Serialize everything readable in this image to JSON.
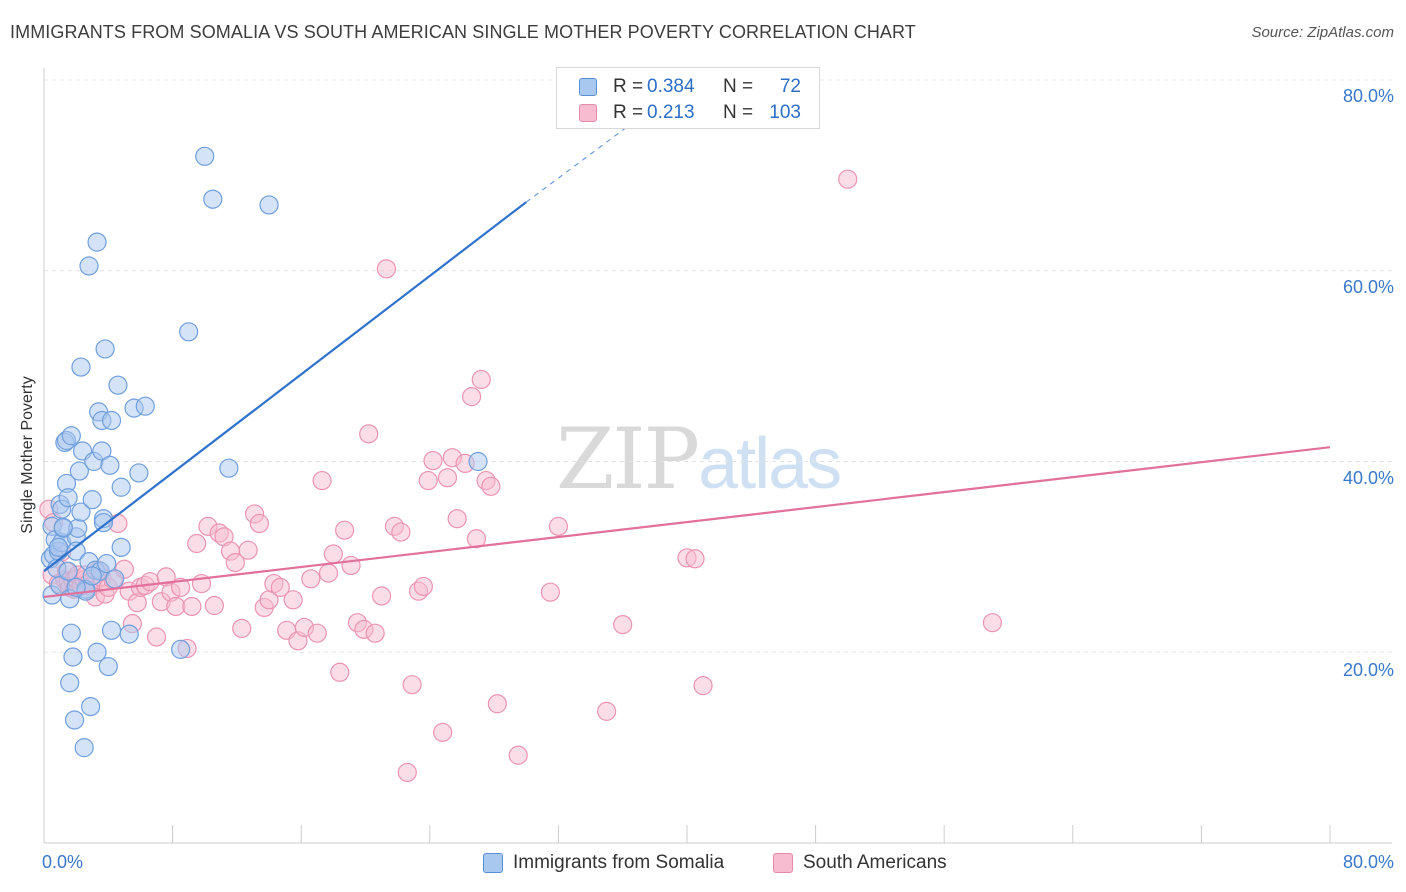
{
  "header": {
    "title": "IMMIGRANTS FROM SOMALIA VS SOUTH AMERICAN SINGLE MOTHER POVERTY CORRELATION CHART",
    "source": "Source: ZipAtlas.com"
  },
  "watermark": {
    "zip": "ZIP",
    "atlas": "atlas"
  },
  "legend_top": [
    {
      "r_label": "R =",
      "r_value": "0.384",
      "n_label": "N =",
      "n_value": "72",
      "color": "#a9c8f0",
      "border": "#5b8fd4"
    },
    {
      "r_label": "R =",
      "r_value": "0.213",
      "n_label": "N =",
      "n_value": "103",
      "color": "#f7bcd0",
      "border": "#e68aa8"
    }
  ],
  "axis": {
    "ylabel": "Single Mother Poverty",
    "y_ticks": [
      "80.0%",
      "60.0%",
      "40.0%",
      "20.0%"
    ],
    "x_left": "0.0%",
    "x_right": "80.0%"
  },
  "legend_bottom": [
    {
      "label": "Immigrants from Somalia",
      "color": "#a9c8f0",
      "border": "#5b8fd4"
    },
    {
      "label": "South Americans",
      "color": "#f7bcd0",
      "border": "#e68aa8"
    }
  ],
  "chart_data": {
    "type": "scatter",
    "xlim": [
      0,
      80
    ],
    "ylim": [
      0,
      82
    ],
    "grid": true,
    "y_gridlines": [
      20,
      40,
      60,
      80
    ],
    "series": [
      {
        "name": "Immigrants from Somalia",
        "fill": "#a9c8f0",
        "stroke": "#6f9fdc",
        "trend_color": "#2f72cc",
        "trend": {
          "x0": 0,
          "y0": 28.5,
          "x1": 30,
          "y1": 67.2,
          "dash_to_x": 37,
          "dash_to_y": 76.0
        },
        "points": [
          [
            0.4,
            29.8
          ],
          [
            0.5,
            33.2
          ],
          [
            0.5,
            26.0
          ],
          [
            0.6,
            30.2
          ],
          [
            0.7,
            31.8
          ],
          [
            0.8,
            28.8
          ],
          [
            0.9,
            30.6
          ],
          [
            1.0,
            35.5
          ],
          [
            1.0,
            27.0
          ],
          [
            1.1,
            31.5
          ],
          [
            1.1,
            35.0
          ],
          [
            1.2,
            33.0
          ],
          [
            1.3,
            42.0
          ],
          [
            1.4,
            42.2
          ],
          [
            1.4,
            37.7
          ],
          [
            1.5,
            36.2
          ],
          [
            1.5,
            28.5
          ],
          [
            1.6,
            25.6
          ],
          [
            1.6,
            16.8
          ],
          [
            1.7,
            22.0
          ],
          [
            1.7,
            42.7
          ],
          [
            1.8,
            19.5
          ],
          [
            1.9,
            12.9
          ],
          [
            2.0,
            32.1
          ],
          [
            2.0,
            30.6
          ],
          [
            2.1,
            33.0
          ],
          [
            2.2,
            39.0
          ],
          [
            2.3,
            34.7
          ],
          [
            2.3,
            49.9
          ],
          [
            2.4,
            41.1
          ],
          [
            2.5,
            10.0
          ],
          [
            2.6,
            26.6
          ],
          [
            2.6,
            26.4
          ],
          [
            2.8,
            29.5
          ],
          [
            2.8,
            60.5
          ],
          [
            2.9,
            14.3
          ],
          [
            3.0,
            36.0
          ],
          [
            3.1,
            40.0
          ],
          [
            3.2,
            28.6
          ],
          [
            3.3,
            63.0
          ],
          [
            3.3,
            20.0
          ],
          [
            3.4,
            45.2
          ],
          [
            3.5,
            28.5
          ],
          [
            3.6,
            44.3
          ],
          [
            3.6,
            41.1
          ],
          [
            3.7,
            34.0
          ],
          [
            3.7,
            33.6
          ],
          [
            3.8,
            51.8
          ],
          [
            3.9,
            29.3
          ],
          [
            4.0,
            18.5
          ],
          [
            4.1,
            39.6
          ],
          [
            4.2,
            22.3
          ],
          [
            4.2,
            44.3
          ],
          [
            4.4,
            27.7
          ],
          [
            4.6,
            48.0
          ],
          [
            4.8,
            37.3
          ],
          [
            5.3,
            21.9
          ],
          [
            5.6,
            45.6
          ],
          [
            5.9,
            38.8
          ],
          [
            6.3,
            45.8
          ],
          [
            8.5,
            20.3
          ],
          [
            9.0,
            53.6
          ],
          [
            10.0,
            72.0
          ],
          [
            10.5,
            67.5
          ],
          [
            11.5,
            39.3
          ],
          [
            14.0,
            66.9
          ],
          [
            27.0,
            40.0
          ],
          [
            1.2,
            33.1
          ],
          [
            2.0,
            26.8
          ],
          [
            0.9,
            31.0
          ],
          [
            3.0,
            28.0
          ],
          [
            4.8,
            31.0
          ]
        ]
      },
      {
        "name": "South Americans",
        "fill": "#f7bcd0",
        "stroke": "#eb94b1",
        "trend_color": "#e1719b",
        "trend": {
          "x0": 0,
          "y0": 25.8,
          "x1": 80,
          "y1": 41.5
        },
        "points": [
          [
            0.3,
            35.0
          ],
          [
            0.5,
            28.1
          ],
          [
            0.6,
            33.6
          ],
          [
            0.9,
            27.2
          ],
          [
            1.1,
            30.5
          ],
          [
            1.3,
            27.6
          ],
          [
            1.4,
            28.5
          ],
          [
            1.5,
            27.4
          ],
          [
            1.6,
            26.8
          ],
          [
            1.8,
            27.5
          ],
          [
            1.9,
            26.6
          ],
          [
            2.0,
            27.7
          ],
          [
            2.1,
            28.1
          ],
          [
            2.3,
            26.9
          ],
          [
            2.5,
            27.6
          ],
          [
            2.6,
            28.1
          ],
          [
            2.8,
            27.3
          ],
          [
            3.0,
            26.9
          ],
          [
            3.2,
            25.8
          ],
          [
            3.4,
            28.6
          ],
          [
            3.6,
            27.8
          ],
          [
            3.8,
            26.1
          ],
          [
            4.0,
            26.8
          ],
          [
            4.3,
            27.6
          ],
          [
            4.6,
            33.5
          ],
          [
            5.0,
            28.7
          ],
          [
            5.3,
            26.4
          ],
          [
            5.5,
            23.0
          ],
          [
            5.8,
            25.2
          ],
          [
            6.0,
            26.8
          ],
          [
            6.3,
            27.0
          ],
          [
            6.6,
            27.4
          ],
          [
            7.0,
            21.6
          ],
          [
            7.3,
            25.3
          ],
          [
            7.6,
            27.9
          ],
          [
            7.9,
            26.3
          ],
          [
            8.2,
            24.8
          ],
          [
            8.5,
            26.8
          ],
          [
            8.9,
            20.4
          ],
          [
            9.2,
            24.8
          ],
          [
            9.5,
            31.4
          ],
          [
            9.8,
            27.2
          ],
          [
            10.2,
            33.2
          ],
          [
            10.6,
            24.9
          ],
          [
            10.9,
            32.5
          ],
          [
            11.2,
            32.1
          ],
          [
            11.6,
            30.6
          ],
          [
            11.9,
            29.4
          ],
          [
            12.3,
            22.5
          ],
          [
            12.7,
            30.7
          ],
          [
            13.1,
            34.5
          ],
          [
            13.4,
            33.5
          ],
          [
            13.7,
            24.7
          ],
          [
            14.0,
            25.5
          ],
          [
            14.3,
            27.2
          ],
          [
            14.7,
            26.8
          ],
          [
            15.1,
            22.3
          ],
          [
            15.5,
            25.5
          ],
          [
            15.8,
            21.2
          ],
          [
            16.2,
            22.6
          ],
          [
            16.6,
            27.7
          ],
          [
            17.0,
            22.0
          ],
          [
            17.3,
            38.0
          ],
          [
            17.7,
            28.3
          ],
          [
            18.0,
            30.3
          ],
          [
            18.4,
            17.9
          ],
          [
            18.7,
            32.8
          ],
          [
            19.1,
            29.1
          ],
          [
            19.5,
            23.1
          ],
          [
            19.9,
            22.4
          ],
          [
            20.2,
            42.9
          ],
          [
            20.6,
            22.0
          ],
          [
            21.0,
            25.9
          ],
          [
            21.3,
            60.2
          ],
          [
            21.8,
            33.2
          ],
          [
            22.2,
            32.6
          ],
          [
            22.6,
            7.4
          ],
          [
            22.9,
            16.6
          ],
          [
            23.3,
            26.4
          ],
          [
            23.6,
            26.9
          ],
          [
            23.9,
            38.0
          ],
          [
            24.2,
            40.1
          ],
          [
            24.8,
            11.6
          ],
          [
            25.1,
            38.3
          ],
          [
            25.4,
            40.4
          ],
          [
            25.7,
            34.0
          ],
          [
            26.2,
            39.8
          ],
          [
            26.6,
            46.8
          ],
          [
            26.9,
            31.9
          ],
          [
            27.2,
            48.6
          ],
          [
            27.5,
            38.0
          ],
          [
            27.8,
            37.4
          ],
          [
            28.2,
            14.6
          ],
          [
            29.5,
            9.2
          ],
          [
            31.5,
            26.3
          ],
          [
            32.0,
            33.2
          ],
          [
            35.0,
            13.8
          ],
          [
            36.0,
            22.9
          ],
          [
            40.0,
            29.9
          ],
          [
            41.0,
            16.5
          ],
          [
            50.0,
            69.6
          ],
          [
            59.0,
            23.1
          ],
          [
            40.5,
            29.8
          ]
        ]
      }
    ]
  }
}
